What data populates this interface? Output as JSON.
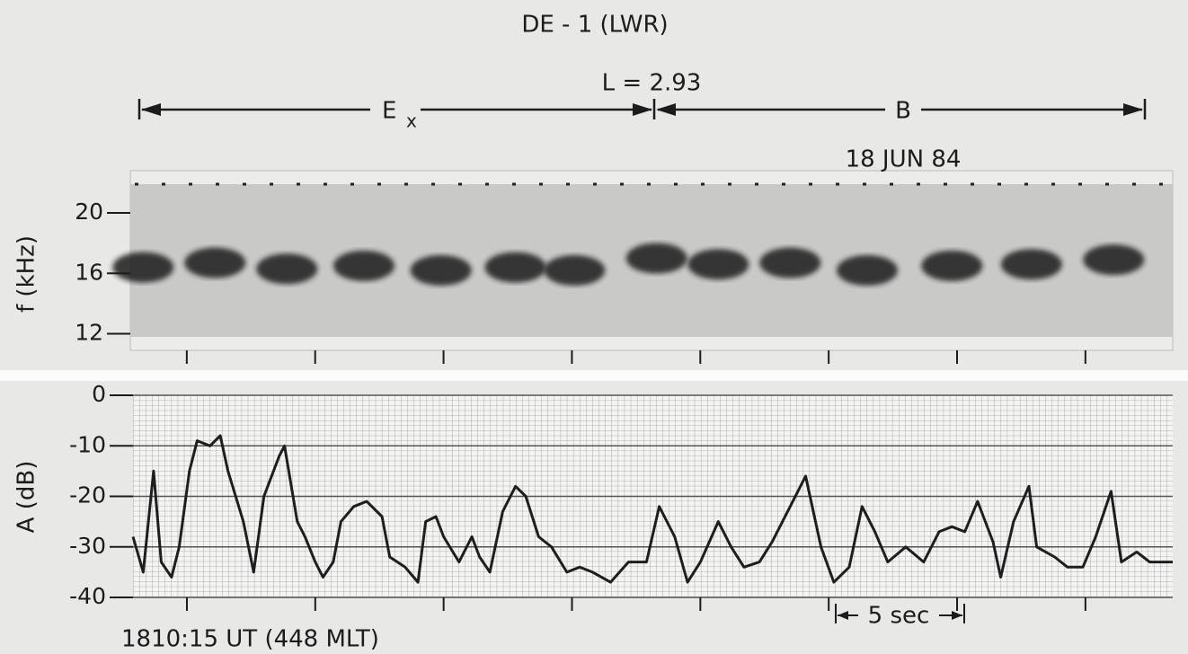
{
  "chart_data": [
    {
      "type": "spectrogram",
      "title": "DE - 1 (LWR)",
      "annotations": {
        "l_shell": "L = 2.93",
        "ex_label": "E",
        "ex_subscript": "x",
        "b_label": "B",
        "date": "18 JUN 84"
      },
      "ylabel": "f (kHz)",
      "ylim": [
        10.9,
        22.8
      ],
      "yticks": [
        12,
        16,
        20
      ],
      "xlim": [
        -2.2,
        38.4
      ],
      "xticks": [
        0,
        5,
        10,
        15,
        20,
        25,
        30,
        35
      ],
      "x": [
        -1.7,
        1.1,
        3.9,
        6.9,
        9.9,
        12.8,
        15.1,
        18.3,
        20.7,
        23.5,
        26.5,
        29.8,
        32.9,
        36.1
      ],
      "values": [
        16.4,
        16.7,
        16.3,
        16.5,
        16.2,
        16.4,
        16.2,
        17.0,
        16.6,
        16.7,
        16.2,
        16.5,
        16.6,
        16.9
      ],
      "color": "#1a1a1a"
    },
    {
      "type": "line",
      "ylabel": "A (dB)",
      "ylim": [
        -40,
        0
      ],
      "yticks": [
        0,
        -10,
        -20,
        -30,
        -40
      ],
      "xlim": [
        -2.1,
        38.4
      ],
      "xticks": [
        0,
        5,
        10,
        15,
        20,
        25,
        30,
        35
      ],
      "grid": true,
      "color": "#1e1e1e",
      "time_label": "1810:15 UT (448 MLT)",
      "scale_label": "5 sec",
      "x": [
        -2.1,
        -1.7,
        -1.3,
        -1.0,
        -0.6,
        -0.3,
        0.1,
        0.4,
        0.9,
        1.3,
        1.6,
        2.2,
        2.6,
        3.0,
        3.6,
        3.8,
        4.3,
        4.6,
        5.0,
        5.3,
        5.7,
        6.0,
        6.5,
        7.0,
        7.6,
        7.9,
        8.5,
        9.0,
        9.3,
        9.7,
        10.0,
        10.6,
        11.1,
        11.4,
        11.8,
        12.3,
        12.8,
        13.2,
        13.7,
        14.2,
        14.8,
        15.3,
        15.8,
        16.5,
        17.2,
        17.9,
        18.4,
        19.0,
        19.5,
        20.0,
        20.7,
        21.2,
        21.7,
        22.3,
        22.8,
        23.5,
        24.1,
        24.7,
        25.2,
        25.8,
        26.3,
        26.8,
        27.3,
        28.0,
        28.7,
        29.3,
        29.8,
        30.3,
        30.8,
        31.4,
        31.7,
        32.2,
        32.8,
        33.1,
        33.8,
        34.3,
        34.9,
        35.4,
        36.0,
        36.4,
        37.0,
        37.5,
        38.0,
        38.4
      ],
      "values": [
        -28,
        -35,
        -15,
        -33,
        -36,
        -30,
        -15,
        -9,
        -10,
        -8,
        -15,
        -25,
        -35,
        -20,
        -12,
        -10,
        -25,
        -28,
        -33,
        -36,
        -33,
        -25,
        -22,
        -21,
        -24,
        -32,
        -34,
        -37,
        -25,
        -24,
        -28,
        -33,
        -28,
        -32,
        -35,
        -23,
        -18,
        -20,
        -28,
        -30,
        -35,
        -34,
        -35,
        -37,
        -33,
        -33,
        -22,
        -28,
        -37,
        -33,
        -25,
        -30,
        -34,
        -33,
        -29,
        -22,
        -16,
        -30,
        -37,
        -34,
        -22,
        -27,
        -33,
        -30,
        -33,
        -27,
        -26,
        -27,
        -21,
        -29,
        -36,
        -25,
        -18,
        -30,
        -32,
        -34,
        -34,
        -28,
        -19,
        -33,
        -31,
        -33,
        -33,
        -33
      ]
    }
  ]
}
